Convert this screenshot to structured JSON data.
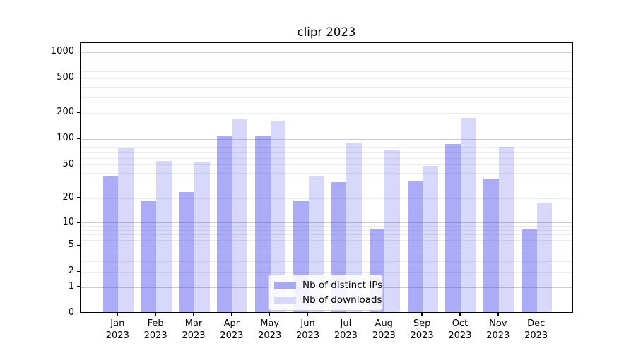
{
  "chart_data": {
    "type": "bar",
    "title": "clipr 2023",
    "categories": [
      "Jan 2023",
      "Feb 2023",
      "Mar 2023",
      "Apr 2023",
      "May 2023",
      "Jun 2023",
      "Jul 2023",
      "Aug 2023",
      "Sep 2023",
      "Oct 2023",
      "Nov 2023",
      "Dec 2023"
    ],
    "series": [
      {
        "name": "Nb of distinct IPs",
        "values": [
          36,
          18,
          23,
          103,
          106,
          18,
          30,
          8,
          31,
          84,
          33,
          8
        ],
        "fill_color": "rgba(70,70,235,0.45)",
        "legend_color": "#a8a8f0"
      },
      {
        "name": "Nb of downloads",
        "values": [
          75,
          53,
          52,
          163,
          156,
          36,
          86,
          72,
          47,
          170,
          78,
          17
        ],
        "fill_color": "rgba(70,70,235,0.21)",
        "legend_color": "#d8d8f8"
      }
    ],
    "xlabel": "",
    "ylabel": "",
    "yscale": "log10(value+1)",
    "y_ticks": [
      0,
      1,
      2,
      5,
      10,
      20,
      50,
      100,
      200,
      500,
      1000
    ],
    "ylim": [
      0,
      1280
    ],
    "grid": true,
    "legend_position": "lower-center-inside"
  },
  "colors": {
    "grid_major": "#cccccc",
    "grid_minor": "#ececec",
    "axis": "#000000",
    "background": "#ffffff"
  }
}
